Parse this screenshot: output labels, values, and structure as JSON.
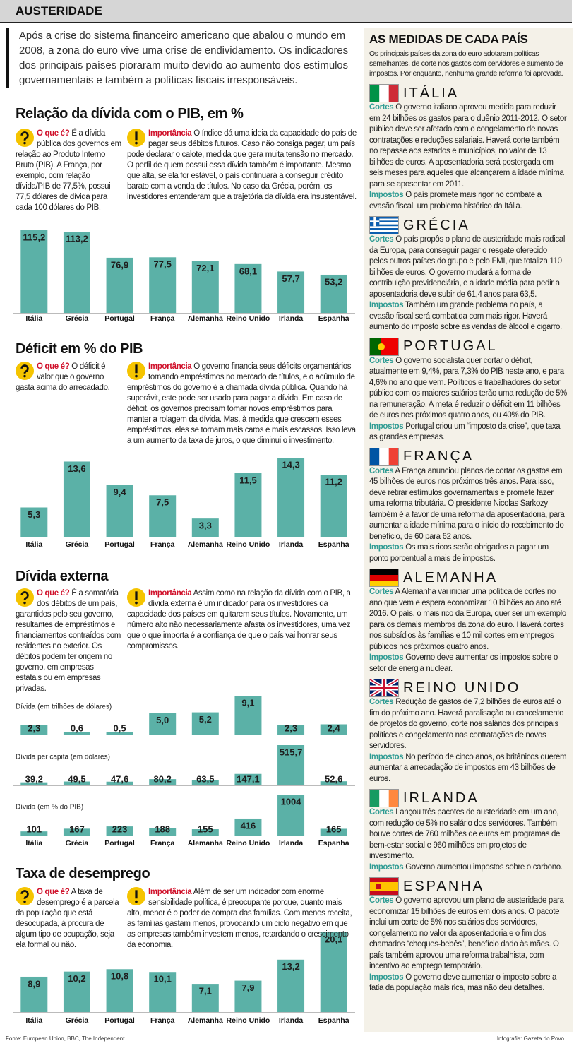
{
  "header": {
    "title": "AUSTERIDADE"
  },
  "intro": "Após a crise do sistema financeiro americano que abalou o mundo em 2008, a zona do euro vive uma crise de endividamento. Os indicadores dos principais países pioraram muito devido ao aumento dos estímulos governamentais e também a políticas fiscais irresponsáveis.",
  "sections": [
    {
      "title": "Relação da dívida com o PIB, em %",
      "what": {
        "label": "O que é?",
        "text": "É a dívida pública dos governos em relação ao Produto Interno Bruto (PIB). A França, por exemplo, com relação dívida/PIB de 77,5%, possui 77,5 dólares de dívida para cada 100 dólares do PIB."
      },
      "importance": {
        "label": "Importância",
        "text": "O índice dá uma ideia da capacidade do país de pagar seus débitos futuros. Caso não consiga pagar, um país pode declarar o calote, medida que gera muita tensão no mercado. O perfil de quem possui essa dívida também é importante. Mesmo que alta, se ela for estável, o país continuará a conseguir crédito barato com a venda de títulos. No caso da Grécia, porém, os investidores entenderam que a trajetória da dívida era insustentável."
      }
    },
    {
      "title": "Déficit em % do PIB",
      "what": {
        "label": "O que é?",
        "text": "O déficit é valor que o governo gasta acima do arrecadado."
      },
      "importance": {
        "label": "Importância",
        "text": "O governo financia seus déficits orçamentários tomando empréstimos no mercado de títulos, e o acúmulo de empréstimos do governo é a chamada dívida pública. Quando há superávit, este pode ser usado para pagar a dívida. Em caso de déficit, os governos precisam tomar novos empréstimos para manter a rolagem da dívida. Mas, à medida que crescem esses empréstimos, eles se tornam mais caros e mais escassos. Isso leva a um aumento da taxa de juros, o que diminui o investimento."
      }
    },
    {
      "title": "Dívida externa",
      "what": {
        "label": "O que é?",
        "text": "É a somatória dos débitos de um país, garantidos pelo seu governo, resultantes de empréstimos e financiamentos contraídos com residentes no exterior. Os débitos podem ter origem no governo, em empresas estatais ou em empresas privadas."
      },
      "importance": {
        "label": "Importância",
        "text": "Assim como na relação da dívida com o PIB, a dívida externa é um indicador para os investidores da capacidade dos países em quitarem seus títulos. Novamente, um número alto não necessariamente afasta os investidores, uma vez que o que importa é a confiança de que o país vai honrar seus compromissos."
      }
    },
    {
      "title": "Taxa de desemprego",
      "what": {
        "label": "O que é?",
        "text": "A taxa de desemprego é a parcela da população que está desocupada, à procura de algum tipo de ocupação, seja ela formal ou não."
      },
      "importance": {
        "label": "Importância",
        "text": "Além de ser um indicador com enorme sensibilidade política, é preocupante porque, quanto mais alto, menor é o poder de compra das famílias. Com menos receita, as famílias gastam menos, provocando um ciclo negativo em que as empresas também investem menos, retardando o crescimento da economia."
      }
    }
  ],
  "chart_data": [
    {
      "type": "bar",
      "color": "#5bb1a7",
      "categories": [
        "Itália",
        "Grécia",
        "Portugal",
        "França",
        "Alemanha",
        "Reino Unido",
        "Irlanda",
        "Espanha"
      ],
      "values": [
        115.2,
        113.2,
        76.9,
        77.5,
        72.1,
        68.1,
        57.7,
        53.2
      ],
      "value_labels": [
        "115,2",
        "113,2",
        "76,9",
        "77,5",
        "72,1",
        "68,1",
        "57,7",
        "53,2"
      ]
    },
    {
      "type": "bar",
      "color": "#5bb1a7",
      "categories": [
        "Itália",
        "Grécia",
        "Portugal",
        "França",
        "Alemanha",
        "Reino Unido",
        "Irlanda",
        "Espanha"
      ],
      "values": [
        5.3,
        13.6,
        9.4,
        7.5,
        3.3,
        11.5,
        14.3,
        11.2
      ],
      "value_labels": [
        "5,3",
        "13,6",
        "9,4",
        "7,5",
        "3,3",
        "11,5",
        "14,3",
        "11,2"
      ]
    },
    {
      "type": "bar",
      "color": "#5bb1a7",
      "title": "Dívida (em trilhões de dólares)",
      "values": [
        2.3,
        0.6,
        0.5,
        5.0,
        5.2,
        9.1,
        2.3,
        2.4
      ],
      "value_labels": [
        "2,3",
        "0,6",
        "0,5",
        "5,0",
        "5,2",
        "9,1",
        "2,3",
        "2,4"
      ]
    },
    {
      "type": "bar",
      "color": "#5bb1a7",
      "title": "Dívida per capita (em dólares)",
      "values": [
        39.2,
        49.5,
        47.6,
        80.2,
        63.5,
        147.1,
        515.7,
        52.6
      ],
      "value_labels": [
        "39,2",
        "49,5",
        "47,6",
        "80,2",
        "63,5",
        "147,1",
        "515,7",
        "52,6"
      ]
    },
    {
      "type": "bar",
      "color": "#5bb1a7",
      "title": "Dívida (em % do PIB)",
      "categories": [
        "Itália",
        "Grécia",
        "Portugal",
        "França",
        "Alemanha",
        "Reino Unido",
        "Irlanda",
        "Espanha"
      ],
      "values": [
        101,
        167,
        223,
        188,
        155,
        416,
        1004,
        165
      ]
    },
    {
      "type": "bar",
      "color": "#5bb1a7",
      "categories": [
        "Itália",
        "Grécia",
        "Portugal",
        "França",
        "Alemanha",
        "Reino Unido",
        "Irlanda",
        "Espanha"
      ],
      "values": [
        8.9,
        10.2,
        10.8,
        10.1,
        7.1,
        7.9,
        13.2,
        20.1
      ],
      "value_labels": [
        "8,9",
        "10,2",
        "10,8",
        "10,1",
        "7,1",
        "7,9",
        "13,2",
        "20,1"
      ]
    }
  ],
  "sidebar": {
    "title": "AS MEDIDAS DE CADA PAÍS",
    "subtitle": "Os principais países da zona do euro adotaram políticas semelhantes, de corte nos gastos com servidores e aumento de impostos. Por enquanto, nenhuma grande reforma foi aprovada.",
    "countries": [
      {
        "name": "ITÁLIA",
        "cuts": {
          "label": "Cortes",
          "text": "O governo italiano aprovou medida para reduzir em 24 bilhões os gastos para o duênio 2011-2012. O setor público deve ser afetado com o congelamento de novas contratações e reduções salariais. Haverá corte também no repasse aos estados e municípios, no valor de 13 bilhões de euros. A aposentadoria será postergada em seis meses para aqueles que alcançarem a idade mínima para se aposentar em 2011."
        },
        "taxes": {
          "label": "Impostos",
          "text": "O país promete mais rigor no combate a evasão fiscal, um problema histórico da Itália."
        }
      },
      {
        "name": "GRÉCIA",
        "cuts": {
          "label": "Cortes",
          "text": "O país propôs o plano de austeridade mais radical da Europa, para conseguir pagar o resgate oferecido pelos outros países do grupo e pelo FMI, que totaliza 110 bilhões de euros. O governo mudará a forma de contribuição previdenciária, e a idade média para pedir a aposentadoria deve subir de 61,4 anos para 63,5."
        },
        "taxes": {
          "label": "Impostos",
          "text": "Também um grande problema no país, a evasão fiscal será combatida com mais rigor. Haverá aumento do imposto sobre as vendas de álcool e cigarro."
        }
      },
      {
        "name": "PORTUGAL",
        "cuts": {
          "label": "Cortes",
          "text": "O governo socialista quer cortar o déficit, atualmente em 9,4%, para 7,3% do PIB neste ano, e para 4,6% no ano que vem. Políticos e trabalhadores do setor público com os maiores salários terão uma redução de 5% na remuneração. A meta é reduzir o déficit em 11 bilhões de euros nos próximos quatro anos, ou 40% do PIB."
        },
        "taxes": {
          "label": "Impostos",
          "text": "Portugal criou um “imposto da crise”, que taxa as grandes empresas."
        }
      },
      {
        "name": "FRANÇA",
        "cuts": {
          "label": "Cortes",
          "text": "A França anunciou planos de cortar os gastos em 45 bilhões de euros nos próximos três anos. Para isso, deve retirar estímulos governamentais e promete fazer uma reforma tributária. O presidente Nicolas Sarkozy também é a favor de uma reforma da aposentadoria, para aumentar a idade mínima para o início do recebimento do benefício, de 60 para 62 anos."
        },
        "taxes": {
          "label": "Impostos",
          "text": "Os mais ricos serão obrigados a pagar um ponto porcentual a mais de impostos."
        }
      },
      {
        "name": "ALEMANHA",
        "cuts": {
          "label": "Cortes",
          "text": "A Alemanha vai iniciar uma política de cortes no ano que vem e espera economizar 10 bilhões ao ano até 2016. O país, o mais rico da Europa, quer ser um exemplo para os demais membros da zona do euro. Haverá cortes nos subsídios às famílias e 10 mil cortes em empregos públicos nos próximos quatro anos."
        },
        "taxes": {
          "label": "Impostos",
          "text": "Governo deve aumentar os impostos sobre o setor de energia nuclear."
        }
      },
      {
        "name": "REINO UNIDO",
        "cuts": {
          "label": "Cortes",
          "text": "Redução de gastos de 7,2 bilhões de euros até o fim do próximo ano. Haverá paralisação ou cancelamento de projetos do governo, corte nos salários dos principais políticos e congelamento nas contratações de novos servidores."
        },
        "taxes": {
          "label": "Impostos",
          "text": "No período de cinco anos, os britânicos querem aumentar a arrecadação de impostos em 43 bilhões de euros."
        }
      },
      {
        "name": "IRLANDA",
        "cuts": {
          "label": "Cortes",
          "text": "Lançou três pacotes de austeridade em um ano, com redução de 5% no salário dos servidores. Também houve cortes de 760 milhões de euros em programas de bem-estar social e 960 milhões em projetos de investimento."
        },
        "taxes": {
          "label": "Impostos",
          "text": "Governo aumentou impostos sobre o carbono."
        }
      },
      {
        "name": "ESPANHA",
        "cuts": {
          "label": "Cortes",
          "text": "O governo aprovou um plano de austeridade para economizar 15 bilhões de euros em dois anos. O pacote inclui um corte de 5% nos salários dos servidores, congelamento no valor da aposentadoria e o fim dos chamados “cheques-bebês”, benefício dado às mães. O país também aprovou uma reforma trabalhista, com incentivo ao emprego temporário."
        },
        "taxes": {
          "label": "Impostos",
          "text": "O governo deve aumentar o imposto sobre a fatia da população mais rica, mas não deu detalhes."
        }
      }
    ]
  },
  "footer": {
    "source": "Fonte: European Union, BBC, The Independent.",
    "credit": "Infografia: Gazeta do Povo"
  }
}
